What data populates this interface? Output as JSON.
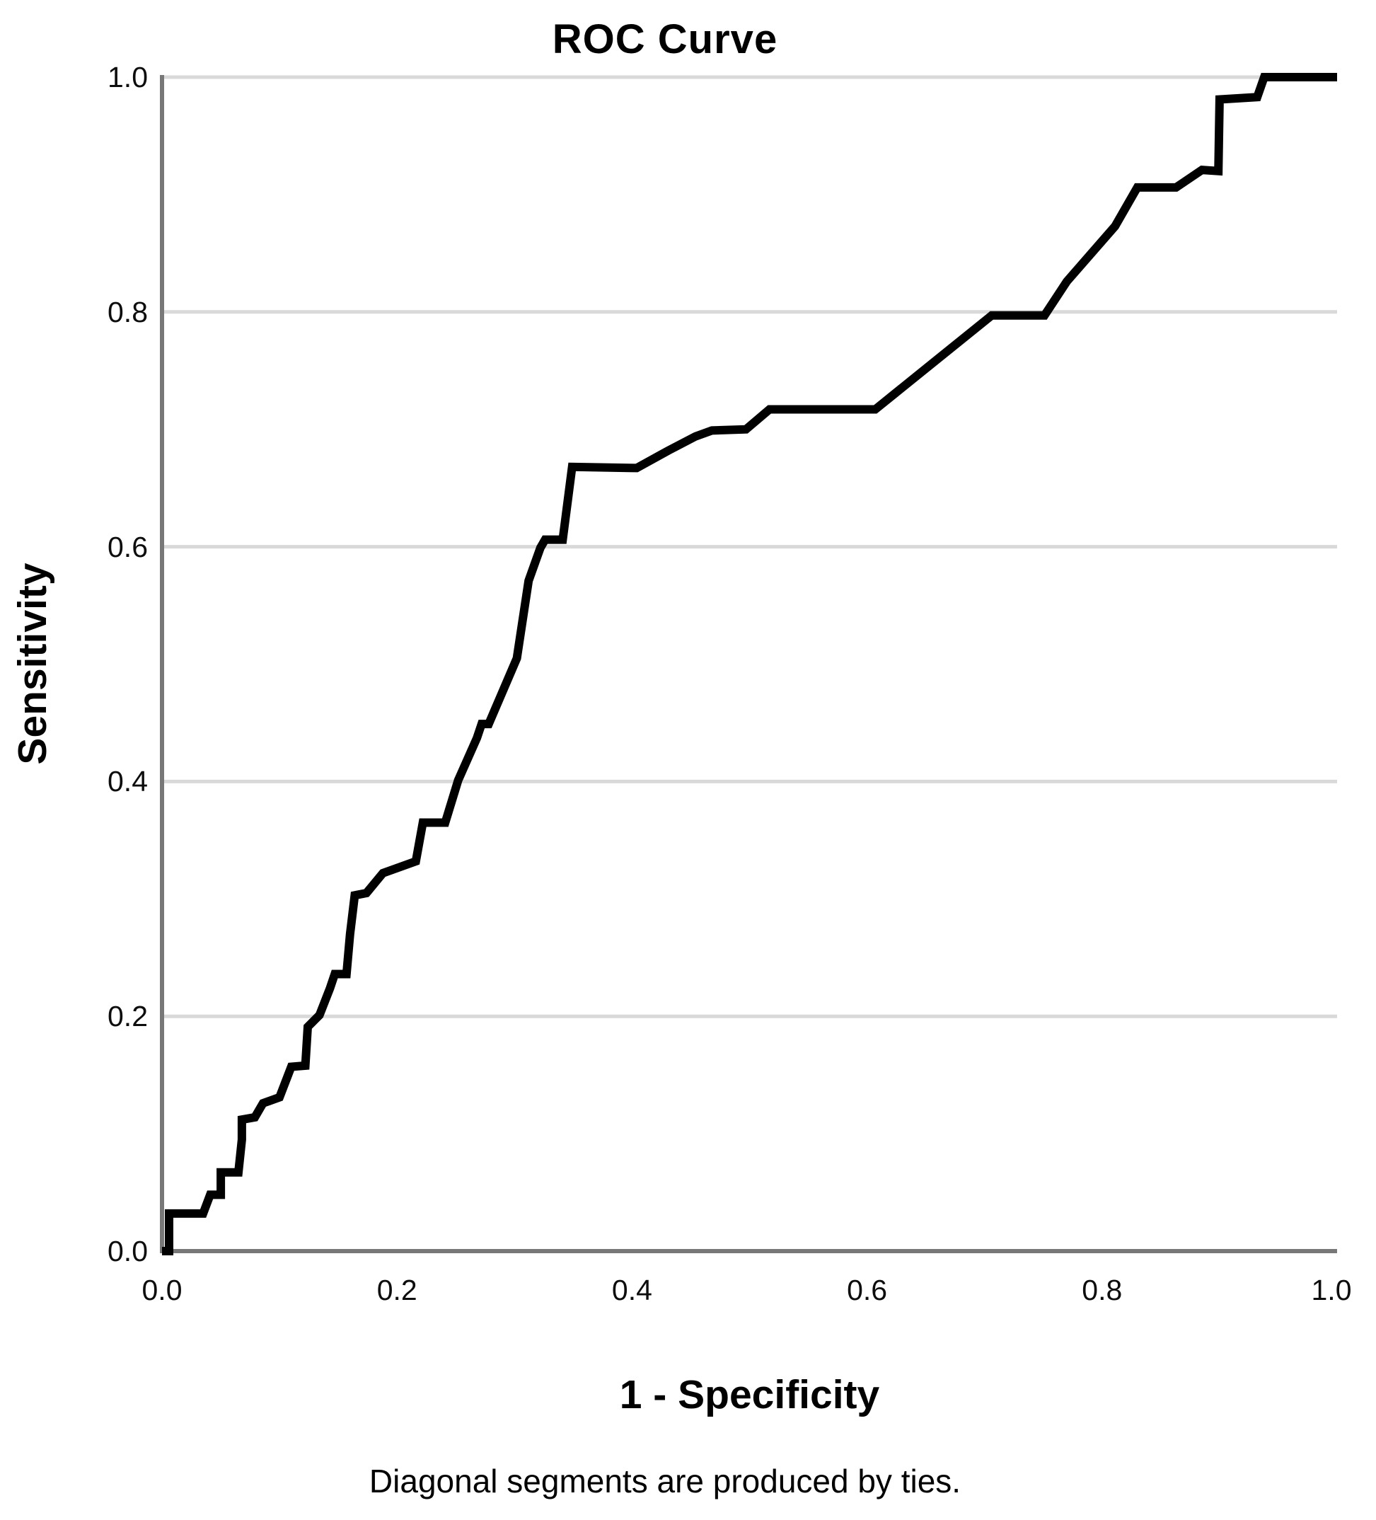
{
  "chart_data": {
    "type": "line",
    "title": "ROC Curve",
    "xlabel": "1 - Specificity",
    "ylabel": "Sensitivity",
    "footnote": "Diagonal segments are produced by ties.",
    "x_ticks": [
      "0.0",
      "0.2",
      "0.4",
      "0.6",
      "0.8",
      "1.0"
    ],
    "y_ticks": [
      "0.0",
      "0.2",
      "0.4",
      "0.6",
      "0.8",
      "1.0"
    ],
    "xlim": [
      0.0,
      1.0
    ],
    "ylim": [
      0.0,
      1.0
    ],
    "grid": "horizontal-only",
    "legend": "none",
    "colors": {
      "curve": "#000000",
      "gridline": "#d9d9d9",
      "axis": "#787878",
      "text": "#000000",
      "background": "#ffffff"
    },
    "series": [
      {
        "name": "ROC curve",
        "points": [
          [
            0.0,
            0.0
          ],
          [
            0.006,
            0.0
          ],
          [
            0.006,
            0.032
          ],
          [
            0.035,
            0.032
          ],
          [
            0.041,
            0.048
          ],
          [
            0.05,
            0.048
          ],
          [
            0.05,
            0.067
          ],
          [
            0.065,
            0.067
          ],
          [
            0.068,
            0.095
          ],
          [
            0.068,
            0.112
          ],
          [
            0.079,
            0.114
          ],
          [
            0.086,
            0.126
          ],
          [
            0.1,
            0.131
          ],
          [
            0.11,
            0.157
          ],
          [
            0.122,
            0.158
          ],
          [
            0.124,
            0.191
          ],
          [
            0.134,
            0.201
          ],
          [
            0.143,
            0.224
          ],
          [
            0.147,
            0.236
          ],
          [
            0.157,
            0.236
          ],
          [
            0.16,
            0.27
          ],
          [
            0.164,
            0.303
          ],
          [
            0.174,
            0.305
          ],
          [
            0.188,
            0.322
          ],
          [
            0.216,
            0.332
          ],
          [
            0.222,
            0.365
          ],
          [
            0.241,
            0.365
          ],
          [
            0.252,
            0.401
          ],
          [
            0.268,
            0.437
          ],
          [
            0.272,
            0.449
          ],
          [
            0.278,
            0.449
          ],
          [
            0.302,
            0.505
          ],
          [
            0.312,
            0.571
          ],
          [
            0.322,
            0.599
          ],
          [
            0.326,
            0.606
          ],
          [
            0.341,
            0.606
          ],
          [
            0.349,
            0.668
          ],
          [
            0.404,
            0.667
          ],
          [
            0.431,
            0.682
          ],
          [
            0.454,
            0.694
          ],
          [
            0.468,
            0.699
          ],
          [
            0.497,
            0.7
          ],
          [
            0.517,
            0.717
          ],
          [
            0.607,
            0.717
          ],
          [
            0.706,
            0.797
          ],
          [
            0.751,
            0.797
          ],
          [
            0.77,
            0.826
          ],
          [
            0.811,
            0.873
          ],
          [
            0.83,
            0.906
          ],
          [
            0.863,
            0.906
          ],
          [
            0.885,
            0.921
          ],
          [
            0.899,
            0.92
          ],
          [
            0.9,
            0.981
          ],
          [
            0.932,
            0.983
          ],
          [
            0.938,
            1.0
          ],
          [
            1.0,
            1.0
          ]
        ]
      }
    ]
  }
}
